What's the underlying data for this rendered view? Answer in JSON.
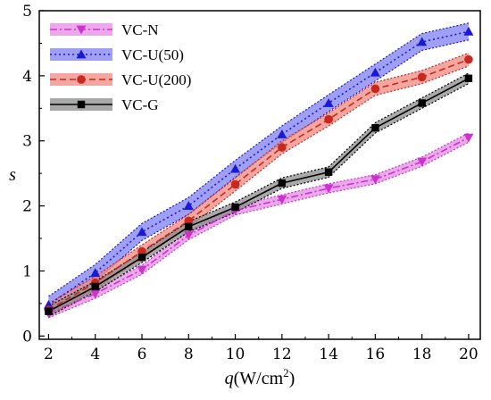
{
  "chart_data": {
    "type": "line",
    "xlabel": "q(W/cm²)",
    "xlabel_parts": {
      "italic": "q",
      "unit": "(W/cm",
      "sup": "2",
      "close": ")"
    },
    "ylabel": "s",
    "xlim": [
      1.6,
      20.5
    ],
    "ylim": [
      -0.05,
      5
    ],
    "xticks": [
      2,
      4,
      6,
      8,
      10,
      12,
      14,
      16,
      18,
      20
    ],
    "yticks": [
      0,
      1,
      2,
      3,
      4,
      5
    ],
    "grid": false,
    "legend_position": "top-left",
    "x": [
      2,
      4,
      6,
      8,
      10,
      12,
      14,
      16,
      18,
      20
    ],
    "series": [
      {
        "name": "VC-N",
        "color": "#cc33cc",
        "band_color": "#e48ce4",
        "marker": "triangle-down",
        "line_style": "dash-dot",
        "values": [
          0.35,
          0.65,
          1.02,
          1.55,
          1.93,
          2.1,
          2.27,
          2.41,
          2.68,
          3.05
        ],
        "band_halfwidth": 0.07
      },
      {
        "name": "VC-U(50)",
        "color": "#1a1ad6",
        "band_color": "#7f7fef",
        "marker": "triangle-up",
        "line_style": "dot",
        "values": [
          0.48,
          0.97,
          1.6,
          2.0,
          2.57,
          3.1,
          3.58,
          4.05,
          4.52,
          4.68
        ],
        "band_halfwidth": 0.13
      },
      {
        "name": "VC-U(200)",
        "color": "#c8281e",
        "band_color": "#f08a82",
        "marker": "circle",
        "line_style": "dash",
        "values": [
          0.4,
          0.82,
          1.3,
          1.77,
          2.33,
          2.9,
          3.33,
          3.8,
          3.98,
          4.25
        ],
        "band_halfwidth": 0.1
      },
      {
        "name": "VC-G",
        "color": "#000000",
        "band_color": "#8c8c8c",
        "marker": "square",
        "line_style": "solid",
        "values": [
          0.38,
          0.76,
          1.21,
          1.68,
          1.98,
          2.35,
          2.52,
          3.2,
          3.58,
          3.96
        ],
        "band_halfwidth": 0.08
      }
    ]
  }
}
